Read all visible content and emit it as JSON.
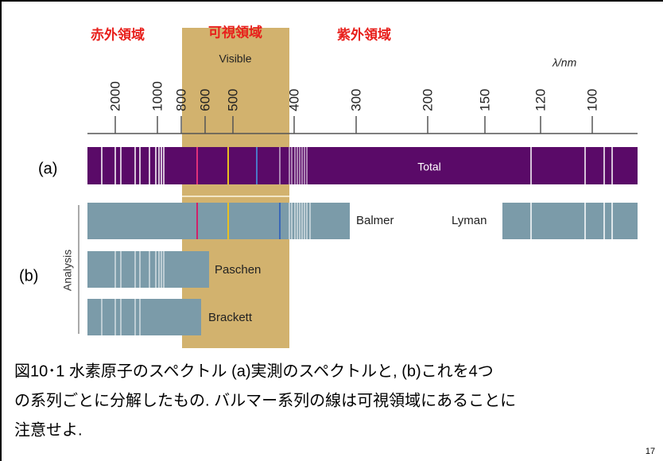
{
  "regions": {
    "infrared": "赤外領域",
    "visible": "可視領域",
    "ultraviolet": "紫外領域"
  },
  "visible_label": "Visible",
  "axis": {
    "unit": "λ/nm",
    "ticks": [
      "2000",
      "1000",
      "800",
      "600",
      "500",
      "400",
      "300",
      "200",
      "150",
      "120",
      "100"
    ]
  },
  "panel_a": {
    "label": "(a)",
    "bar": "Total"
  },
  "panel_b": {
    "label": "(b)",
    "group": "Analysis",
    "series": [
      "Balmer",
      "Lyman",
      "Paschen",
      "Brackett"
    ]
  },
  "caption": [
    "図10･1  水素原子のスペクトル  (a)実測のスペクトルと, (b)これを4つ",
    "の系列ごとに分解したもの. バルマー系列の線は可視領域にあることに",
    "注意せよ."
  ],
  "page_number": "17"
}
